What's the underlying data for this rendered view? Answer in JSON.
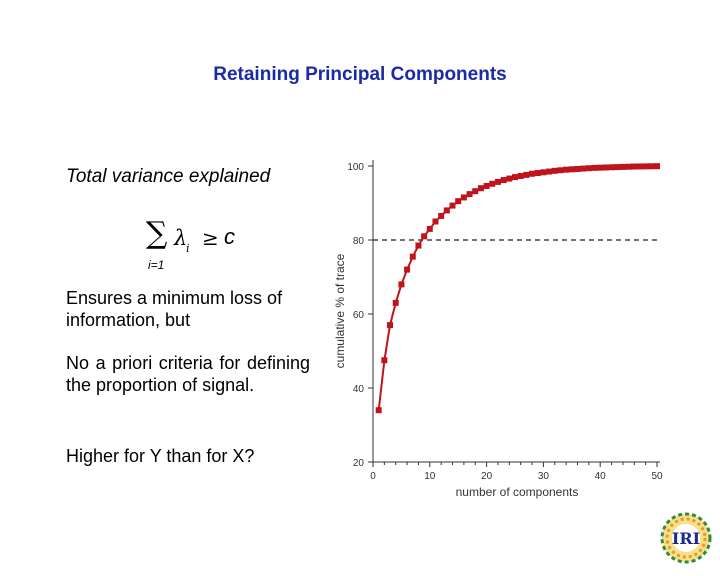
{
  "slide": {
    "title": "Retaining Principal Components",
    "subhead": "Total variance explained",
    "formula": {
      "sum_symbol": "∑",
      "lower_limit": "i=1",
      "term": "λ",
      "subscript": "i",
      "relation": "≥",
      "constant": "c"
    },
    "paragraphs": [
      "Ensures a minimum loss of information, but",
      "No a priori criteria for defining the proportion of signal.",
      "Higher for Y than for X?"
    ],
    "logo_text": "IRI"
  },
  "chart_data": {
    "type": "line",
    "xlabel": "number of components",
    "ylabel": "cumulative % of trace",
    "xlim": [
      0,
      50
    ],
    "ylim": [
      20,
      100
    ],
    "xticks": [
      0,
      10,
      20,
      30,
      40,
      50
    ],
    "yticks": [
      20,
      40,
      60,
      80,
      100
    ],
    "reference_line": 80,
    "line_color": "#c0141c",
    "grid": false,
    "series": [
      {
        "x": [
          1,
          2,
          3,
          4,
          5,
          6,
          7,
          8,
          9,
          10,
          11,
          12,
          13,
          14,
          15,
          16,
          17,
          18,
          19,
          20,
          21,
          22,
          23,
          24,
          25,
          26,
          27,
          28,
          29,
          30,
          31,
          32,
          33,
          34,
          35,
          36,
          37,
          38,
          39,
          40,
          41,
          42,
          43,
          44,
          45,
          46,
          47,
          48,
          49,
          50
        ],
        "values": [
          34,
          47.5,
          57,
          63,
          68,
          72,
          75.5,
          78.5,
          81,
          83,
          85,
          86.5,
          88,
          89.3,
          90.5,
          91.5,
          92.4,
          93.2,
          94,
          94.6,
          95.2,
          95.7,
          96.2,
          96.6,
          97,
          97.3,
          97.6,
          97.9,
          98.1,
          98.3,
          98.5,
          98.7,
          98.85,
          99,
          99.1,
          99.2,
          99.3,
          99.4,
          99.5,
          99.55,
          99.6,
          99.65,
          99.7,
          99.75,
          99.8,
          99.85,
          99.88,
          99.9,
          99.92,
          99.95
        ]
      }
    ]
  }
}
